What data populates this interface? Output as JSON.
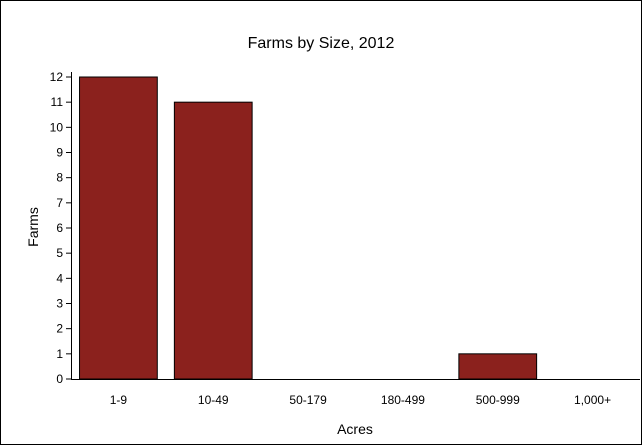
{
  "chart_data": {
    "type": "bar",
    "title": "Farms by Size, 2012",
    "xlabel": "Acres",
    "ylabel": "Farms",
    "categories": [
      "1-9",
      "10-49",
      "50-179",
      "180-499",
      "500-999",
      "1,000+"
    ],
    "values": [
      12,
      11,
      0,
      0,
      1,
      0
    ],
    "ylim": [
      0,
      12
    ],
    "yticks": [
      "0",
      "1",
      "2",
      "3",
      "4",
      "5",
      "6",
      "7",
      "8",
      "9",
      "10",
      "11",
      "12"
    ],
    "bar_color": "#8B211D",
    "grid": false,
    "legend": "none"
  }
}
